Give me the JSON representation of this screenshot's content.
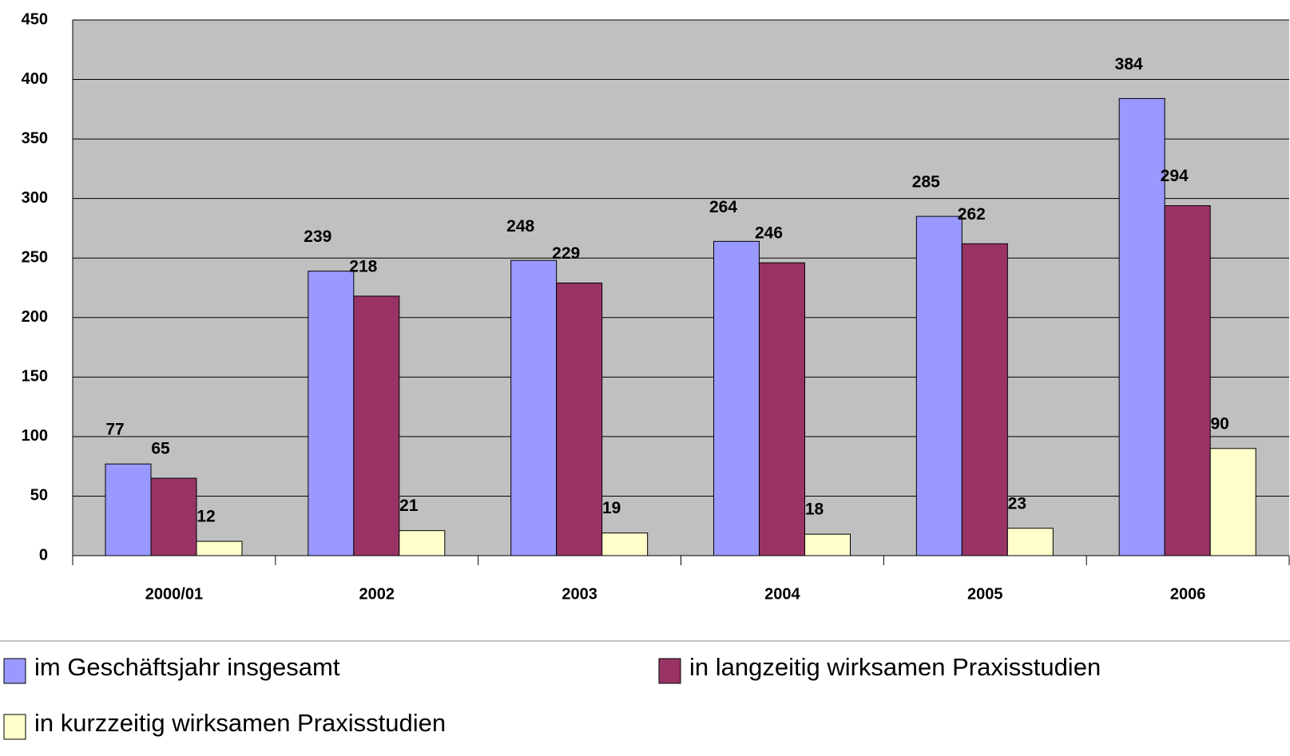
{
  "chart_data": {
    "type": "bar",
    "categories": [
      "2000/01",
      "2002",
      "2003",
      "2004",
      "2005",
      "2006"
    ],
    "series": [
      {
        "name": "im Geschäftsjahr insgesamt",
        "color": "#9999ff",
        "values": [
          77,
          239,
          248,
          264,
          285,
          384
        ]
      },
      {
        "name": "in langzeitig wirksamen Praxisstudien",
        "color": "#993366",
        "values": [
          65,
          218,
          229,
          246,
          262,
          294
        ]
      },
      {
        "name": "in kurzzeitig wirksamen Praxisstudien",
        "color": "#ffffcc",
        "values": [
          12,
          21,
          19,
          18,
          23,
          90
        ]
      }
    ],
    "ylim": [
      0,
      450
    ],
    "yticks": [
      0,
      50,
      100,
      150,
      200,
      250,
      300,
      350,
      400,
      450
    ],
    "grid": true,
    "legend": "bottom",
    "data_labels": true
  }
}
